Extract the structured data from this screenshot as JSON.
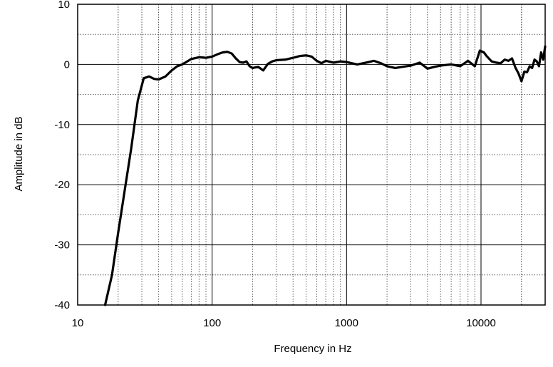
{
  "chart_data": {
    "type": "line",
    "title": "",
    "xlabel": "Frequency in Hz",
    "ylabel": "Amplitude in dB",
    "xscale": "log",
    "xlim": [
      10,
      30000
    ],
    "ylim": [
      -40,
      10
    ],
    "grid": true,
    "x_tick_labels": [
      "10",
      "100",
      "1000",
      "10000"
    ],
    "y_tick_labels": [
      "10",
      "0",
      "-10",
      "-20",
      "-30",
      "-40"
    ],
    "series": [
      {
        "line_color": "#000000",
        "x": [
          16,
          18,
          20,
          22,
          25,
          28,
          31,
          34,
          37,
          40,
          45,
          50,
          55,
          60,
          70,
          80,
          90,
          100,
          110,
          120,
          130,
          140,
          150,
          160,
          170,
          180,
          190,
          200,
          220,
          240,
          260,
          280,
          300,
          350,
          400,
          450,
          500,
          550,
          600,
          650,
          700,
          800,
          900,
          1000,
          1200,
          1400,
          1600,
          1800,
          2000,
          2300,
          2600,
          3000,
          3500,
          4000,
          4500,
          5000,
          6000,
          7000,
          8000,
          9000,
          9800,
          10500,
          11000,
          12000,
          13000,
          14000,
          15000,
          16000,
          17000,
          18000,
          19000,
          20000,
          21000,
          22000,
          23000,
          24000,
          25000,
          26000,
          27000,
          28000,
          29000,
          30000
        ],
        "y": [
          -40,
          -35,
          -28,
          -22,
          -14,
          -6,
          -2.3,
          -2.0,
          -2.4,
          -2.5,
          -2.0,
          -1.0,
          -0.3,
          0.0,
          0.9,
          1.2,
          1.1,
          1.3,
          1.7,
          2.0,
          2.1,
          1.8,
          1.0,
          0.4,
          0.3,
          0.5,
          -0.3,
          -0.6,
          -0.4,
          -1.0,
          0.1,
          0.5,
          0.7,
          0.8,
          1.1,
          1.4,
          1.5,
          1.3,
          0.6,
          0.2,
          0.6,
          0.3,
          0.5,
          0.4,
          0.0,
          0.3,
          0.6,
          0.2,
          -0.3,
          -0.6,
          -0.4,
          -0.2,
          0.3,
          -0.7,
          -0.4,
          -0.2,
          0.0,
          -0.3,
          0.6,
          -0.3,
          2.3,
          2.0,
          1.4,
          0.5,
          0.3,
          0.2,
          0.8,
          0.6,
          1.0,
          -0.5,
          -1.5,
          -2.8,
          -1.2,
          -1.3,
          -0.3,
          -0.6,
          0.8,
          0.5,
          -0.3,
          2.0,
          0.8,
          3.0
        ]
      }
    ]
  }
}
